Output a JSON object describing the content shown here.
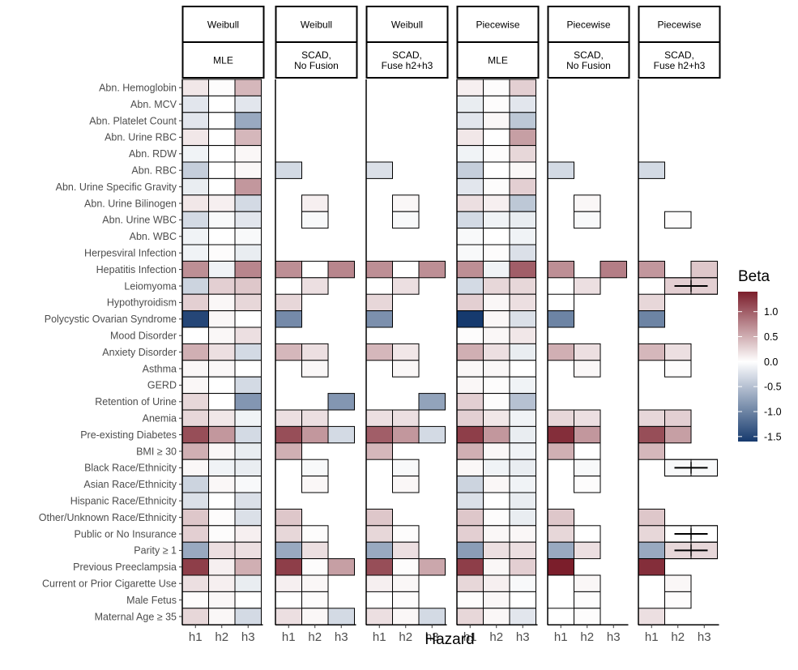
{
  "chart_data": {
    "type": "heatmap",
    "xlabel": "Hazard",
    "x_categories": [
      "h1",
      "h2",
      "h3"
    ],
    "panels": [
      {
        "strip_top": "Weibull",
        "strip_bottom": "MLE"
      },
      {
        "strip_top": "Weibull",
        "strip_bottom": "SCAD,\nNo Fusion"
      },
      {
        "strip_top": "Weibull",
        "strip_bottom": "SCAD,\nFuse h2+h3"
      },
      {
        "strip_top": "Piecewise",
        "strip_bottom": "MLE"
      },
      {
        "strip_top": "Piecewise",
        "strip_bottom": "SCAD,\nNo Fusion"
      },
      {
        "strip_top": "Piecewise",
        "strip_bottom": "SCAD,\nFuse h2+h3"
      }
    ],
    "rows": [
      "Abn. Hemoglobin",
      "Abn. MCV",
      "Abn. Platelet Count",
      "Abn. Urine RBC",
      "Abn. RDW",
      "Abn. RBC",
      "Abn. Urine Specific Gravity",
      "Abn. Urine Bilinogen",
      "Abn. Urine WBC",
      "Abn. WBC",
      "Herpesviral Infection",
      "Hepatitis Infection",
      "Leiomyoma",
      "Hypothyroidism",
      "Polycystic Ovarian Syndrome",
      "Mood Disorder",
      "Anxiety Disorder",
      "Asthma",
      "GERD",
      "Retention of Urine",
      "Anemia",
      "Pre-existing Diabetes",
      "BMI ≥ 30",
      "Black Race/Ethnicity",
      "Asian Race/Ethnicity",
      "Hispanic Race/Ethnicity",
      "Other/Unknown Race/Ethnicity",
      "Public or No Insurance",
      "Parity ≥ 1",
      "Previous Preeclampsia",
      "Current or Prior Cigarette Use",
      "Male Fetus",
      "Maternal Age ≥ 35"
    ],
    "values": [
      [
        [
          0.15,
          0.02,
          0.45
        ],
        [
          -0.2,
          0.0,
          -0.2
        ],
        [
          -0.2,
          0.0,
          -0.7
        ],
        [
          0.15,
          0.0,
          0.45
        ],
        [
          -0.1,
          0.0,
          0.05
        ],
        [
          -0.4,
          0.0,
          0.05
        ],
        [
          -0.15,
          0.0,
          0.65
        ],
        [
          0.15,
          0.1,
          -0.3
        ],
        [
          -0.3,
          -0.05,
          -0.2
        ],
        [
          -0.1,
          0.0,
          -0.05
        ],
        [
          -0.1,
          0.02,
          -0.15
        ],
        [
          0.7,
          -0.1,
          0.75
        ],
        [
          -0.35,
          0.3,
          0.35
        ],
        [
          0.3,
          0.05,
          0.25
        ],
        [
          -1.5,
          0.05,
          0.0
        ],
        [
          0.0,
          0.05,
          0.2
        ],
        [
          0.5,
          0.2,
          -0.3
        ],
        [
          0.05,
          0.05,
          0.0
        ],
        [
          0.05,
          0.0,
          -0.3
        ],
        [
          0.25,
          0.0,
          -0.85
        ],
        [
          0.25,
          0.15,
          -0.1
        ],
        [
          1.1,
          0.65,
          -0.3
        ],
        [
          0.5,
          0.05,
          -0.15
        ],
        [
          0.05,
          -0.1,
          -0.15
        ],
        [
          -0.35,
          0.05,
          -0.05
        ],
        [
          -0.25,
          0.0,
          -0.25
        ],
        [
          0.35,
          0.02,
          -0.25
        ],
        [
          0.3,
          0.02,
          0.1
        ],
        [
          -0.7,
          0.2,
          0.2
        ],
        [
          1.2,
          0.1,
          0.5
        ],
        [
          0.2,
          0.1,
          -0.15
        ],
        [
          0.02,
          0.05,
          0.0
        ],
        [
          0.25,
          0.05,
          -0.3
        ]
      ],
      [
        [
          null,
          null,
          null
        ],
        [
          null,
          null,
          null
        ],
        [
          null,
          null,
          null
        ],
        [
          null,
          null,
          null
        ],
        [
          null,
          null,
          null
        ],
        [
          -0.3,
          null,
          null
        ],
        [
          null,
          null,
          null
        ],
        [
          null,
          0.1,
          null
        ],
        [
          null,
          -0.05,
          null
        ],
        [
          null,
          null,
          null
        ],
        [
          null,
          null,
          null
        ],
        [
          0.7,
          0.0,
          0.75
        ],
        [
          null,
          0.2,
          null
        ],
        [
          0.25,
          null,
          null
        ],
        [
          -0.95,
          null,
          null
        ],
        [
          null,
          null,
          null
        ],
        [
          0.45,
          0.2,
          null
        ],
        [
          null,
          0.05,
          null
        ],
        [
          null,
          null,
          null
        ],
        [
          null,
          null,
          -0.85
        ],
        [
          0.2,
          0.2,
          null
        ],
        [
          1.1,
          0.65,
          -0.3
        ],
        [
          0.5,
          null,
          null
        ],
        [
          null,
          -0.05,
          null
        ],
        [
          null,
          0.05,
          null
        ],
        [
          null,
          null,
          null
        ],
        [
          0.35,
          null,
          null
        ],
        [
          0.25,
          0.02,
          null
        ],
        [
          -0.7,
          0.2,
          null
        ],
        [
          1.2,
          0.02,
          0.6
        ],
        [
          0.1,
          0.05,
          null
        ],
        [
          null,
          0.02,
          null
        ],
        [
          0.2,
          0.05,
          -0.3
        ]
      ],
      [
        [
          null,
          null,
          null
        ],
        [
          null,
          null,
          null
        ],
        [
          null,
          null,
          null
        ],
        [
          null,
          null,
          null
        ],
        [
          null,
          null,
          null
        ],
        [
          -0.25,
          null,
          null
        ],
        [
          null,
          null,
          null
        ],
        [
          null,
          0.05,
          null
        ],
        [
          null,
          -0.05,
          null
        ],
        [
          null,
          null,
          null
        ],
        [
          null,
          null,
          null
        ],
        [
          0.7,
          0.0,
          0.7
        ],
        [
          null,
          0.2,
          null
        ],
        [
          0.25,
          null,
          null
        ],
        [
          -0.9,
          null,
          null
        ],
        [
          null,
          null,
          null
        ],
        [
          0.45,
          0.15,
          null
        ],
        [
          null,
          0.05,
          null
        ],
        [
          null,
          null,
          null
        ],
        [
          null,
          null,
          -0.75
        ],
        [
          0.2,
          0.2,
          null
        ],
        [
          1.0,
          0.65,
          -0.3
        ],
        [
          0.45,
          null,
          null
        ],
        [
          null,
          -0.05,
          null
        ],
        [
          null,
          0.05,
          null
        ],
        [
          null,
          null,
          null
        ],
        [
          0.35,
          null,
          null
        ],
        [
          0.25,
          0.02,
          null
        ],
        [
          -0.7,
          0.2,
          null
        ],
        [
          1.1,
          0.02,
          0.55
        ],
        [
          0.1,
          0.05,
          null
        ],
        [
          null,
          0.02,
          null
        ],
        [
          0.2,
          0.05,
          -0.3
        ]
      ],
      [
        [
          0.1,
          0.02,
          0.3
        ],
        [
          -0.15,
          0.02,
          -0.2
        ],
        [
          -0.2,
          0.05,
          -0.45
        ],
        [
          0.15,
          0.0,
          0.6
        ],
        [
          -0.1,
          0.02,
          0.25
        ],
        [
          -0.4,
          0.0,
          0.05
        ],
        [
          -0.2,
          0.02,
          0.3
        ],
        [
          0.2,
          0.1,
          -0.45
        ],
        [
          -0.3,
          -0.1,
          -0.15
        ],
        [
          -0.05,
          0.0,
          -0.1
        ],
        [
          -0.05,
          0.02,
          -0.25
        ],
        [
          0.7,
          -0.1,
          1.0
        ],
        [
          -0.3,
          0.25,
          0.25
        ],
        [
          0.3,
          0.05,
          0.2
        ],
        [
          -1.6,
          0.05,
          -0.25
        ],
        [
          0.02,
          0.05,
          0.15
        ],
        [
          0.5,
          0.2,
          -0.15
        ],
        [
          0.05,
          0.05,
          0.0
        ],
        [
          0.05,
          0.02,
          -0.1
        ],
        [
          0.3,
          0.02,
          -0.5
        ],
        [
          0.3,
          0.15,
          -0.1
        ],
        [
          1.2,
          0.65,
          -0.15
        ],
        [
          0.5,
          0.05,
          -0.1
        ],
        [
          0.05,
          -0.1,
          -0.15
        ],
        [
          -0.35,
          0.05,
          -0.1
        ],
        [
          -0.25,
          0.0,
          -0.15
        ],
        [
          0.35,
          0.02,
          -0.15
        ],
        [
          0.3,
          0.05,
          0.05
        ],
        [
          -0.8,
          0.2,
          0.2
        ],
        [
          1.2,
          0.05,
          0.3
        ],
        [
          0.25,
          0.1,
          -0.05
        ],
        [
          0.02,
          0.05,
          0.0
        ],
        [
          0.25,
          0.05,
          -0.2
        ]
      ],
      [
        [
          null,
          null,
          null
        ],
        [
          null,
          null,
          null
        ],
        [
          null,
          null,
          null
        ],
        [
          null,
          null,
          null
        ],
        [
          null,
          null,
          null
        ],
        [
          -0.3,
          null,
          null
        ],
        [
          null,
          null,
          null
        ],
        [
          null,
          0.05,
          null
        ],
        [
          null,
          -0.05,
          null
        ],
        [
          null,
          null,
          null
        ],
        [
          null,
          null,
          null
        ],
        [
          0.7,
          null,
          0.8
        ],
        [
          null,
          0.2,
          null
        ],
        [
          0.0,
          null,
          null
        ],
        [
          -1.0,
          null,
          null
        ],
        [
          null,
          null,
          null
        ],
        [
          0.5,
          0.2,
          null
        ],
        [
          null,
          0.05,
          null
        ],
        [
          null,
          null,
          null
        ],
        [
          null,
          null,
          null
        ],
        [
          0.25,
          0.2,
          null
        ],
        [
          1.3,
          0.65,
          null
        ],
        [
          0.5,
          0.0,
          null
        ],
        [
          null,
          -0.05,
          null
        ],
        [
          null,
          0.02,
          null
        ],
        [
          null,
          null,
          null
        ],
        [
          0.35,
          null,
          null
        ],
        [
          0.25,
          0.0,
          null
        ],
        [
          -0.7,
          0.2,
          null
        ],
        [
          1.4,
          null,
          null
        ],
        [
          null,
          0.05,
          null
        ],
        [
          null,
          0.02,
          null
        ],
        [
          0.0,
          0.02,
          null
        ]
      ],
      [
        [
          null,
          null,
          null
        ],
        [
          null,
          null,
          null
        ],
        [
          null,
          null,
          null
        ],
        [
          null,
          null,
          null
        ],
        [
          null,
          null,
          null
        ],
        [
          -0.3,
          null,
          null
        ],
        [
          null,
          null,
          null
        ],
        [
          null,
          null,
          null
        ],
        [
          null,
          0.02,
          null
        ],
        [
          null,
          null,
          null
        ],
        [
          null,
          null,
          null
        ],
        [
          0.65,
          null,
          0.35
        ],
        [
          null,
          0.3,
          0.3
        ],
        [
          0.25,
          null,
          null
        ],
        [
          -1.0,
          null,
          null
        ],
        [
          null,
          null,
          null
        ],
        [
          0.45,
          0.2,
          null
        ],
        [
          null,
          0.02,
          null
        ],
        [
          null,
          null,
          null
        ],
        [
          null,
          null,
          null
        ],
        [
          0.25,
          0.3,
          null
        ],
        [
          1.1,
          0.6,
          null
        ],
        [
          0.45,
          null,
          null
        ],
        [
          null,
          -0.05,
          -0.05
        ],
        [
          null,
          null,
          null
        ],
        [
          null,
          null,
          null
        ],
        [
          0.35,
          null,
          null
        ],
        [
          0.25,
          0.0,
          0.0
        ],
        [
          -0.7,
          0.25,
          0.25
        ],
        [
          1.3,
          null,
          null
        ],
        [
          null,
          0.05,
          null
        ],
        [
          null,
          0.02,
          null
        ],
        [
          0.2,
          null,
          null
        ]
      ]
    ],
    "fused_rows": [
      {
        "panel": 6,
        "row": "Leiomyoma"
      },
      {
        "panel": 6,
        "row": "Black Race/Ethnicity"
      },
      {
        "panel": 6,
        "row": "Public or No Insurance"
      },
      {
        "panel": 6,
        "row": "Parity ≥ 1"
      }
    ],
    "legend": {
      "title": "Beta",
      "ticks": [
        1.0,
        0.5,
        0.0,
        -0.5,
        -1.0,
        -1.5
      ],
      "tick_labels": [
        "1.0",
        "0.5",
        "0.0",
        "-0.5",
        "-1.0",
        "-1.5"
      ],
      "range": [
        -1.6,
        1.4
      ],
      "colors": {
        "low": "#163a6e",
        "mid": "#ffffff",
        "high": "#7b1e2b"
      }
    }
  }
}
